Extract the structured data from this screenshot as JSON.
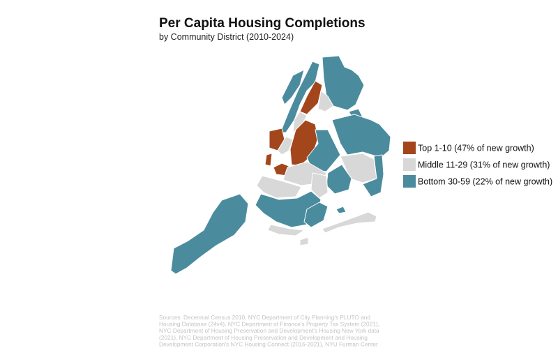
{
  "header": {
    "title": "Per Capita Housing Completions",
    "subtitle": "by Community District (2010-2024)"
  },
  "legend": [
    {
      "label": "Top 1-10 (47% of new growth)",
      "color": "#a3461c"
    },
    {
      "label": "Middle 11-29 (31% of new growth)",
      "color": "#d8d8d8"
    },
    {
      "label": "Bottom 30-59 (22% of new growth)",
      "color": "#4a8c9e"
    }
  ],
  "sources": [
    "Sources: Decennial Census 2010, NYC Department of City Planning's PLUTO and",
    "Housing Database (24v4), NYC Department of Finance's Property Tax System (2021),",
    "NYC Department of Housing Preservation and Development's Housing New York data",
    "(2021), NYC Department of Housing Preservation and Development and Housing",
    "Development Corporation's NYC Housing Connect (2016-2021), NYU Furman Center"
  ]
}
